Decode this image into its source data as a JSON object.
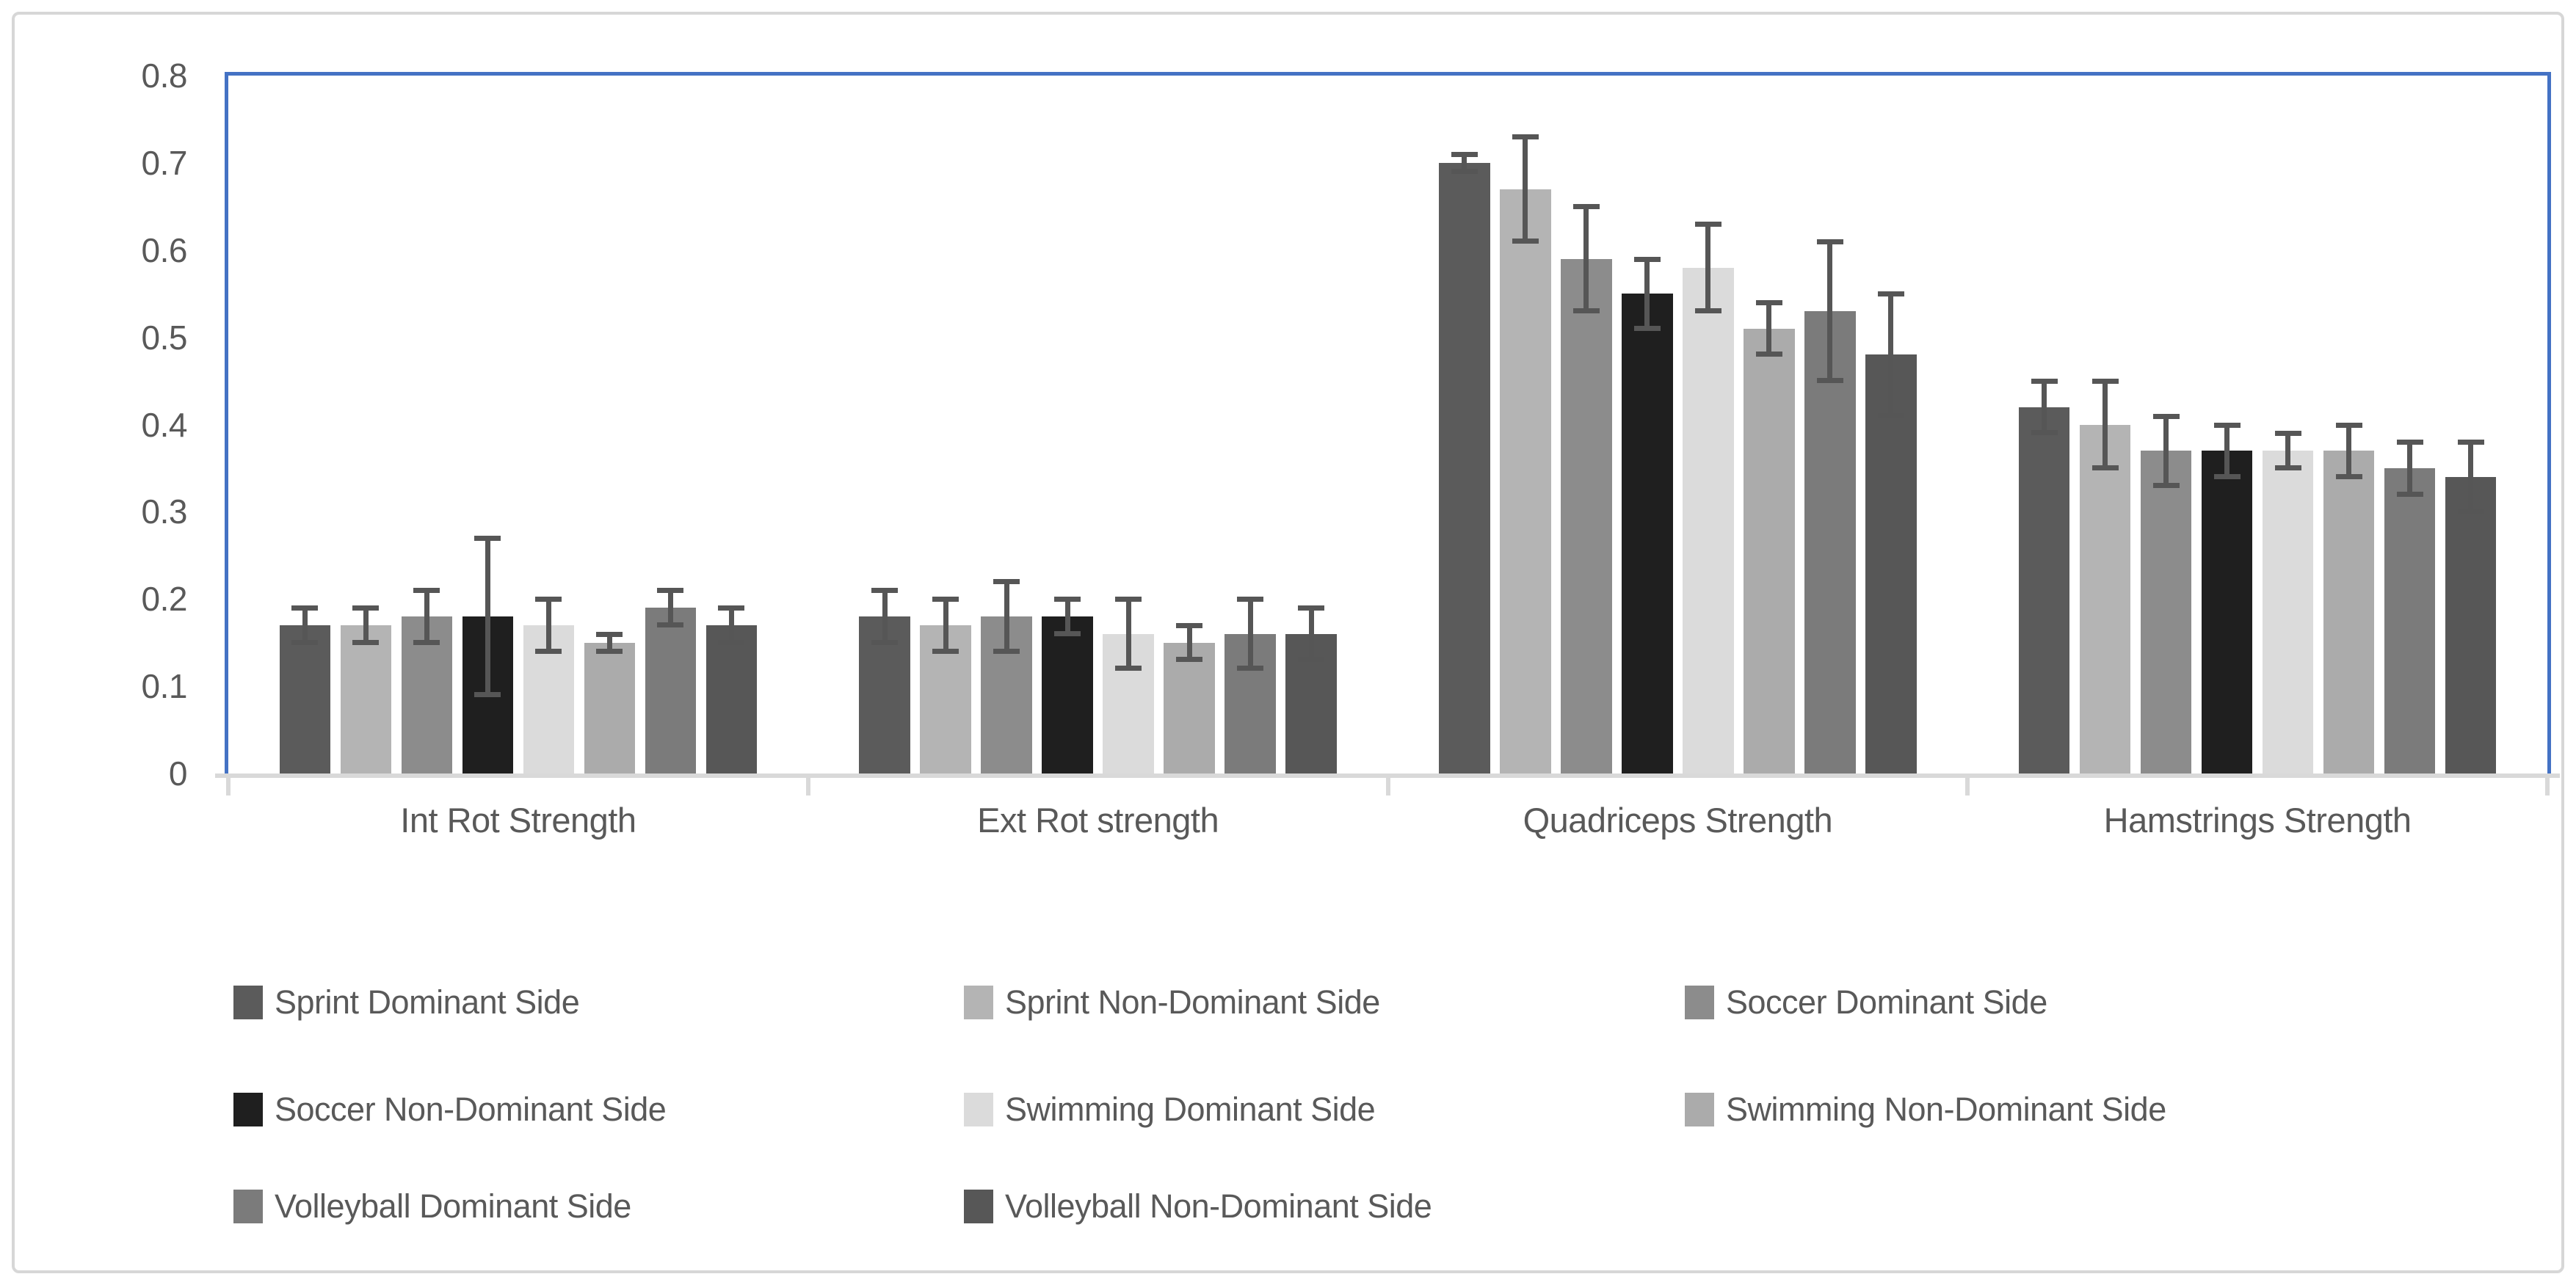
{
  "figure": {
    "background": "#FFFFFF",
    "border_color": "#D7D7D7"
  },
  "chart_data": {
    "type": "bar",
    "title": "",
    "xlabel": "",
    "ylabel": "",
    "categories": [
      "Int Rot Strength",
      "Ext Rot strength",
      "Quadriceps Strength",
      "Hamstrings Strength"
    ],
    "series": [
      {
        "name": "Sprint Dominant Side",
        "color": "#5B5B5B",
        "values": [
          0.17,
          0.18,
          0.7,
          0.42
        ],
        "errors": [
          0.02,
          0.03,
          0.01,
          0.03
        ]
      },
      {
        "name": "Sprint Non-Dominant Side",
        "color": "#B4B4B4",
        "values": [
          0.17,
          0.17,
          0.67,
          0.4
        ],
        "errors": [
          0.02,
          0.03,
          0.06,
          0.05
        ]
      },
      {
        "name": "Soccer Dominant Side",
        "color": "#8C8C8C",
        "values": [
          0.18,
          0.18,
          0.59,
          0.37
        ],
        "errors": [
          0.03,
          0.04,
          0.06,
          0.04
        ]
      },
      {
        "name": "Soccer Non-Dominant Side",
        "color": "#1F1F1F",
        "values": [
          0.18,
          0.18,
          0.55,
          0.37
        ],
        "errors": [
          0.09,
          0.02,
          0.04,
          0.03
        ]
      },
      {
        "name": "Swimming Dominant Side",
        "color": "#DBDBDB",
        "values": [
          0.17,
          0.16,
          0.58,
          0.37
        ],
        "errors": [
          0.03,
          0.04,
          0.05,
          0.02
        ]
      },
      {
        "name": "Swimming Non-Dominant Side",
        "color": "#ABABAB",
        "values": [
          0.15,
          0.15,
          0.51,
          0.37
        ],
        "errors": [
          0.01,
          0.02,
          0.03,
          0.03
        ]
      },
      {
        "name": "Volleyball Dominant Side",
        "color": "#7B7B7B",
        "values": [
          0.19,
          0.16,
          0.53,
          0.35
        ],
        "errors": [
          0.02,
          0.04,
          0.08,
          0.03
        ]
      },
      {
        "name": "Volleyball Non-Dominant Side",
        "color": "#575757",
        "values": [
          0.17,
          0.16,
          0.48,
          0.34
        ],
        "errors": [
          0.02,
          0.03,
          0.07,
          0.04
        ]
      }
    ],
    "ylim": [
      0,
      0.8
    ],
    "ytick_labels": [
      "0",
      "0.1",
      "0.2",
      "0.3",
      "0.4",
      "0.5",
      "0.6",
      "0.7",
      "0.8"
    ],
    "grid": false,
    "legend_position": "bottom",
    "error_bars": true,
    "colors": {
      "plot_border": "#4472C4",
      "axis_line": "#D9D9D9",
      "error_bar": "#565656",
      "text": "#595959"
    }
  }
}
